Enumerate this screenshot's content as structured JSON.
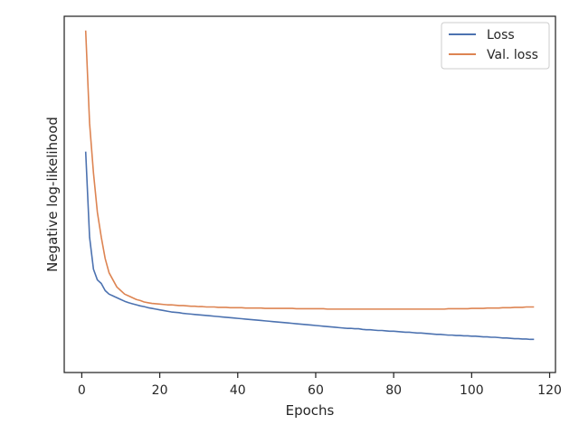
{
  "chart_data": {
    "type": "line",
    "title": "",
    "xlabel": "Epochs",
    "ylabel": "Negative log-likelihood",
    "xlim": [
      -4.5,
      121.5
    ],
    "ylim": [
      0,
      1
    ],
    "xticks": [
      0,
      20,
      40,
      60,
      80,
      100,
      120
    ],
    "xtick_labels": [
      "0",
      "20",
      "40",
      "60",
      "80",
      "100",
      "120"
    ],
    "yticks_shown": false,
    "grid": false,
    "legend_position": "top-right",
    "series": [
      {
        "name": "Loss",
        "color": "#4c72b0",
        "x": [
          1,
          2,
          3,
          4,
          5,
          6,
          7,
          8,
          9,
          10,
          11,
          12,
          13,
          14,
          15,
          16,
          17,
          18,
          19,
          20,
          21,
          22,
          23,
          24,
          25,
          26,
          27,
          28,
          29,
          30,
          31,
          32,
          33,
          34,
          35,
          36,
          37,
          38,
          39,
          40,
          41,
          42,
          43,
          44,
          45,
          46,
          47,
          48,
          49,
          50,
          51,
          52,
          53,
          54,
          55,
          56,
          57,
          58,
          59,
          60,
          61,
          62,
          63,
          64,
          65,
          66,
          67,
          68,
          69,
          70,
          71,
          72,
          73,
          74,
          75,
          76,
          77,
          78,
          79,
          80,
          81,
          82,
          83,
          84,
          85,
          86,
          87,
          88,
          89,
          90,
          91,
          92,
          93,
          94,
          95,
          96,
          97,
          98,
          99,
          100,
          101,
          102,
          103,
          104,
          105,
          106,
          107,
          108,
          109,
          110,
          111,
          112,
          113,
          114,
          115,
          116
        ],
        "y": [
          0.62,
          0.38,
          0.29,
          0.26,
          0.25,
          0.23,
          0.22,
          0.215,
          0.21,
          0.205,
          0.2,
          0.196,
          0.193,
          0.19,
          0.187,
          0.185,
          0.182,
          0.18,
          0.178,
          0.176,
          0.174,
          0.172,
          0.17,
          0.169,
          0.168,
          0.166,
          0.165,
          0.164,
          0.163,
          0.162,
          0.161,
          0.16,
          0.159,
          0.158,
          0.157,
          0.156,
          0.155,
          0.154,
          0.153,
          0.152,
          0.151,
          0.15,
          0.149,
          0.148,
          0.147,
          0.146,
          0.145,
          0.144,
          0.143,
          0.142,
          0.141,
          0.14,
          0.139,
          0.138,
          0.137,
          0.136,
          0.135,
          0.134,
          0.133,
          0.132,
          0.131,
          0.13,
          0.129,
          0.128,
          0.127,
          0.126,
          0.125,
          0.124,
          0.124,
          0.123,
          0.123,
          0.121,
          0.12,
          0.12,
          0.119,
          0.118,
          0.118,
          0.117,
          0.116,
          0.116,
          0.115,
          0.114,
          0.113,
          0.113,
          0.112,
          0.111,
          0.111,
          0.11,
          0.109,
          0.108,
          0.107,
          0.107,
          0.106,
          0.105,
          0.105,
          0.104,
          0.104,
          0.103,
          0.103,
          0.102,
          0.102,
          0.101,
          0.1,
          0.1,
          0.099,
          0.099,
          0.098,
          0.097,
          0.097,
          0.096,
          0.095,
          0.095,
          0.094,
          0.094,
          0.093,
          0.093
        ]
      },
      {
        "name": "Val. loss",
        "color": "#dd8452",
        "x": [
          1,
          2,
          3,
          4,
          5,
          6,
          7,
          8,
          9,
          10,
          11,
          12,
          13,
          14,
          15,
          16,
          17,
          18,
          19,
          20,
          21,
          22,
          23,
          24,
          25,
          26,
          27,
          28,
          29,
          30,
          31,
          32,
          33,
          34,
          35,
          36,
          37,
          38,
          39,
          40,
          41,
          42,
          43,
          44,
          45,
          46,
          47,
          48,
          49,
          50,
          51,
          52,
          53,
          54,
          55,
          56,
          57,
          58,
          59,
          60,
          61,
          62,
          63,
          64,
          65,
          66,
          67,
          68,
          69,
          70,
          71,
          72,
          73,
          74,
          75,
          76,
          77,
          78,
          79,
          80,
          81,
          82,
          83,
          84,
          85,
          86,
          87,
          88,
          89,
          90,
          91,
          92,
          93,
          94,
          95,
          96,
          97,
          98,
          99,
          100,
          101,
          102,
          103,
          104,
          105,
          106,
          107,
          108,
          109,
          110,
          111,
          112,
          113,
          114,
          115,
          116
        ],
        "y": [
          0.96,
          0.7,
          0.56,
          0.45,
          0.38,
          0.32,
          0.28,
          0.26,
          0.24,
          0.23,
          0.22,
          0.215,
          0.21,
          0.205,
          0.202,
          0.198,
          0.196,
          0.194,
          0.193,
          0.192,
          0.191,
          0.19,
          0.19,
          0.189,
          0.188,
          0.188,
          0.187,
          0.186,
          0.186,
          0.185,
          0.185,
          0.184,
          0.184,
          0.184,
          0.183,
          0.183,
          0.183,
          0.182,
          0.182,
          0.182,
          0.182,
          0.181,
          0.181,
          0.181,
          0.181,
          0.181,
          0.18,
          0.18,
          0.18,
          0.18,
          0.18,
          0.18,
          0.18,
          0.18,
          0.179,
          0.179,
          0.179,
          0.179,
          0.179,
          0.179,
          0.179,
          0.179,
          0.178,
          0.178,
          0.178,
          0.178,
          0.178,
          0.178,
          0.178,
          0.178,
          0.178,
          0.178,
          0.178,
          0.178,
          0.178,
          0.178,
          0.178,
          0.178,
          0.178,
          0.178,
          0.178,
          0.178,
          0.178,
          0.178,
          0.178,
          0.178,
          0.178,
          0.178,
          0.178,
          0.178,
          0.178,
          0.178,
          0.178,
          0.179,
          0.179,
          0.179,
          0.179,
          0.179,
          0.179,
          0.18,
          0.18,
          0.18,
          0.18,
          0.181,
          0.181,
          0.181,
          0.181,
          0.182,
          0.182,
          0.182,
          0.183,
          0.183,
          0.183,
          0.184,
          0.184,
          0.184
        ]
      }
    ]
  }
}
